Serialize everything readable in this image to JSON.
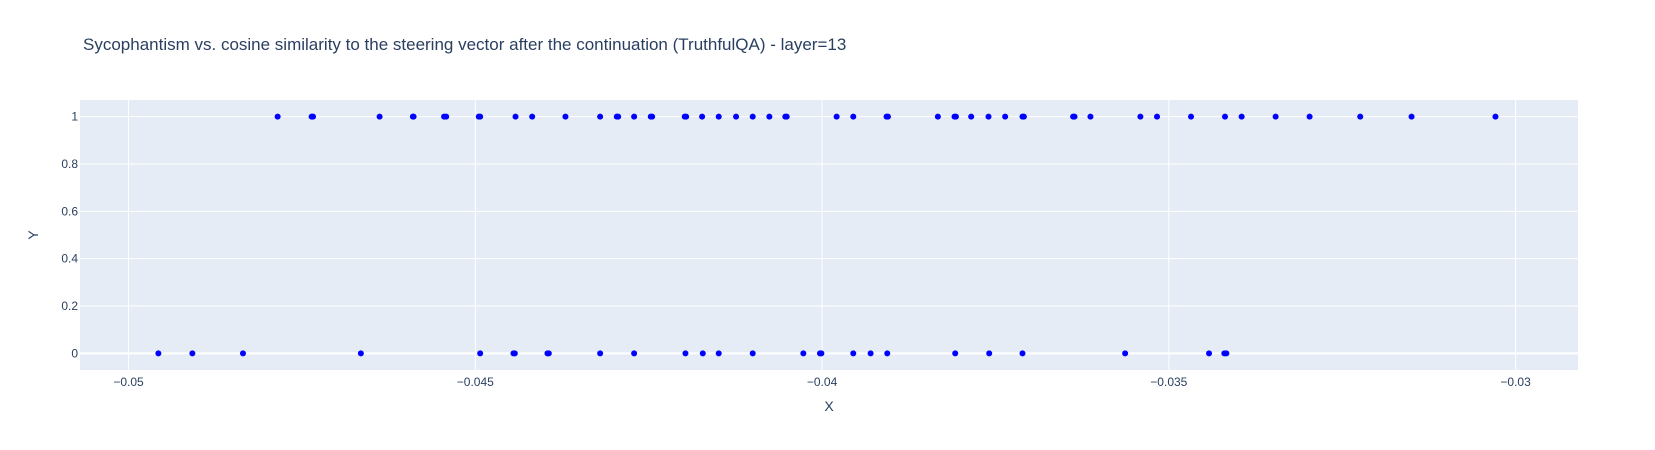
{
  "chart_data": {
    "type": "scatter",
    "title": "Sycophantism vs. cosine similarity to the steering vector after the continuation (TruthfulQA) - layer=13",
    "xlabel": "X",
    "ylabel": "Y",
    "xlim": [
      -0.0507,
      -0.0291
    ],
    "ylim": [
      -0.07,
      1.07
    ],
    "x_ticks": [
      -0.05,
      -0.045,
      -0.04,
      -0.035,
      -0.03
    ],
    "x_tick_labels": [
      "−0.05",
      "−0.045",
      "−0.04",
      "−0.035",
      "−0.03"
    ],
    "y_ticks": [
      0,
      0.2,
      0.4,
      0.6,
      0.8,
      1
    ],
    "y_tick_labels": [
      "0",
      "0.2",
      "0.4",
      "0.6",
      "0.8",
      "1"
    ],
    "grid": true,
    "marker_color": "#0000ff",
    "plot_background": "#e5ecf6",
    "series": [
      {
        "points": [
          [
            -0.04785,
            1
          ],
          [
            -0.04736,
            1
          ],
          [
            -0.04734,
            1
          ],
          [
            -0.04638,
            1
          ],
          [
            -0.04589,
            1
          ],
          [
            -0.0459,
            1
          ],
          [
            -0.04545,
            1
          ],
          [
            -0.04542,
            1
          ],
          [
            -0.04495,
            1
          ],
          [
            -0.04493,
            1
          ],
          [
            -0.04442,
            1
          ],
          [
            -0.04418,
            1
          ],
          [
            -0.0437,
            1
          ],
          [
            -0.0432,
            1
          ],
          [
            -0.04296,
            1
          ],
          [
            -0.04294,
            1
          ],
          [
            -0.04271,
            1
          ],
          [
            -0.04247,
            1
          ],
          [
            -0.04245,
            1
          ],
          [
            -0.04198,
            1
          ],
          [
            -0.04196,
            1
          ],
          [
            -0.04173,
            1
          ],
          [
            -0.04149,
            1
          ],
          [
            -0.04124,
            1
          ],
          [
            -0.041,
            1
          ],
          [
            -0.04076,
            1
          ],
          [
            -0.04053,
            1
          ],
          [
            -0.04051,
            1
          ],
          [
            -0.03979,
            1
          ],
          [
            -0.03955,
            1
          ],
          [
            -0.03907,
            1
          ],
          [
            -0.03905,
            1
          ],
          [
            -0.03833,
            1
          ],
          [
            -0.03809,
            1
          ],
          [
            -0.03807,
            1
          ],
          [
            -0.03785,
            1
          ],
          [
            -0.0376,
            1
          ],
          [
            -0.03736,
            1
          ],
          [
            -0.03711,
            1
          ],
          [
            -0.03709,
            1
          ],
          [
            -0.03638,
            1
          ],
          [
            -0.03636,
            1
          ],
          [
            -0.03613,
            1
          ],
          [
            -0.03541,
            1
          ],
          [
            -0.03517,
            1
          ],
          [
            -0.03468,
            1
          ],
          [
            -0.03419,
            1
          ],
          [
            -0.03395,
            1
          ],
          [
            -0.03346,
            1
          ],
          [
            -0.03297,
            1
          ],
          [
            -0.03224,
            1
          ],
          [
            -0.0315,
            1
          ],
          [
            -0.03029,
            1
          ],
          [
            -0.04957,
            0
          ],
          [
            -0.04908,
            0
          ],
          [
            -0.04835,
            0
          ],
          [
            -0.04665,
            0
          ],
          [
            -0.04493,
            0
          ],
          [
            -0.04445,
            0
          ],
          [
            -0.04443,
            0
          ],
          [
            -0.04396,
            0
          ],
          [
            -0.04394,
            0
          ],
          [
            -0.0432,
            0
          ],
          [
            -0.04271,
            0
          ],
          [
            -0.04197,
            0
          ],
          [
            -0.04172,
            0
          ],
          [
            -0.04149,
            0
          ],
          [
            -0.041,
            0
          ],
          [
            -0.04027,
            0
          ],
          [
            -0.04003,
            0
          ],
          [
            -0.04001,
            0
          ],
          [
            -0.03955,
            0
          ],
          [
            -0.0393,
            0
          ],
          [
            -0.03906,
            0
          ],
          [
            -0.03808,
            0
          ],
          [
            -0.03759,
            0
          ],
          [
            -0.03711,
            0
          ],
          [
            -0.03563,
            0
          ],
          [
            -0.03442,
            0
          ],
          [
            -0.0342,
            0
          ],
          [
            -0.03417,
            0
          ]
        ]
      }
    ]
  }
}
